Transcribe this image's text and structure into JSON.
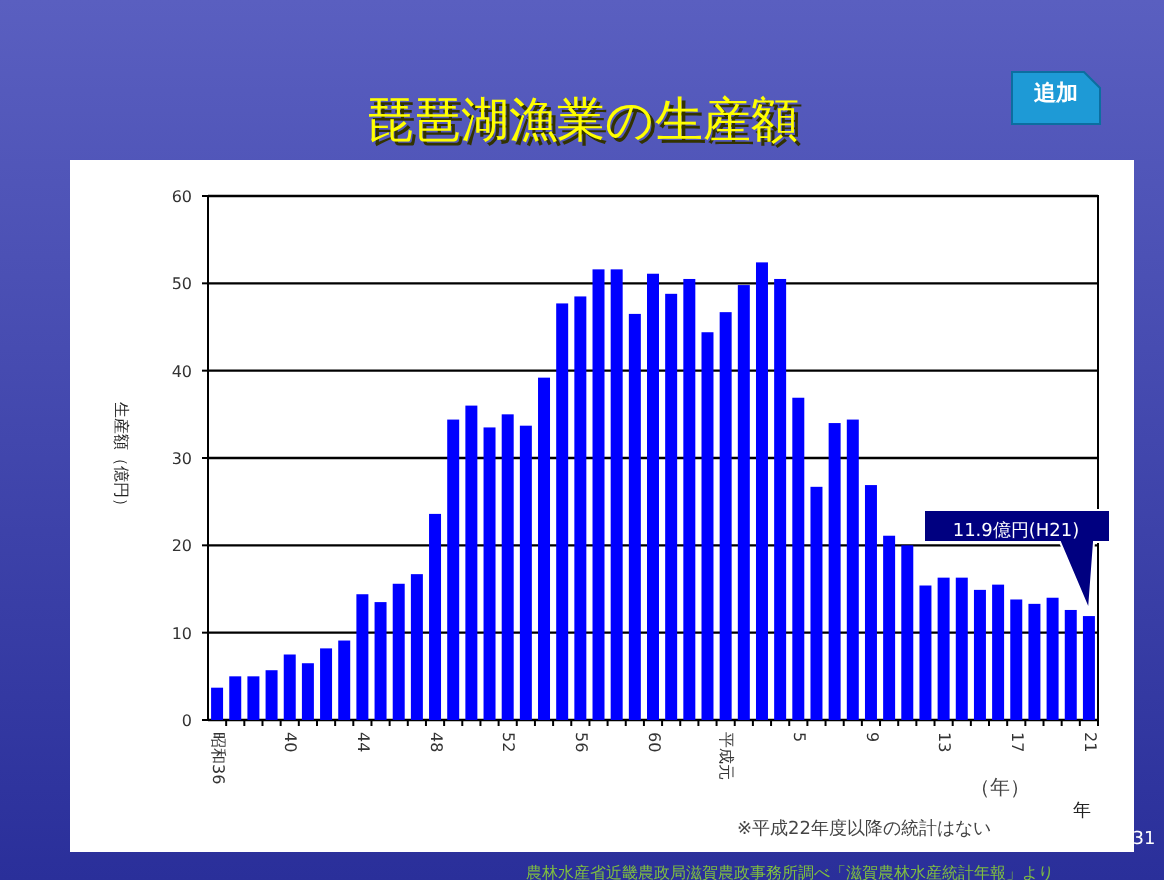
{
  "chart_data": {
    "type": "bar",
    "title": "琵琶湖漁業の生産額",
    "ylabel": "生産額（億円）",
    "xlabel": "（年）",
    "categories": [
      "昭和36",
      null,
      null,
      null,
      "40",
      null,
      null,
      null,
      "44",
      null,
      null,
      null,
      "48",
      null,
      null,
      null,
      "52",
      null,
      null,
      null,
      "56",
      null,
      null,
      null,
      "60",
      null,
      null,
      null,
      "平成元",
      null,
      null,
      null,
      "5",
      null,
      null,
      null,
      "9",
      null,
      null,
      null,
      "13",
      null,
      null,
      null,
      "17",
      null,
      null,
      null,
      "21"
    ],
    "values": [
      3.7,
      5.0,
      5.0,
      5.7,
      7.5,
      6.5,
      8.2,
      9.1,
      14.4,
      13.5,
      15.6,
      16.7,
      23.6,
      34.4,
      36.0,
      33.5,
      35.0,
      33.7,
      39.2,
      47.7,
      48.5,
      51.6,
      51.6,
      46.5,
      51.1,
      48.8,
      50.5,
      44.4,
      46.7,
      49.8,
      52.4,
      50.5,
      36.9,
      26.7,
      34.0,
      34.4,
      26.9,
      21.1,
      20.0,
      15.4,
      16.3,
      16.3,
      14.9,
      15.5,
      13.8,
      13.3,
      14.0,
      12.6,
      11.9
    ],
    "color": "#0000ff",
    "ylim": [
      0,
      60
    ],
    "yticks": [
      0,
      10,
      20,
      30,
      40,
      50,
      60
    ],
    "grid": "y",
    "annotations": [
      "11.9億円(H21)",
      "年",
      "※平成22年度以降の統計はない",
      "農林水産省近畿農政局滋賀農政事務所調べ「滋賀農林水産統計年報」より",
      "追加",
      "31"
    ]
  }
}
